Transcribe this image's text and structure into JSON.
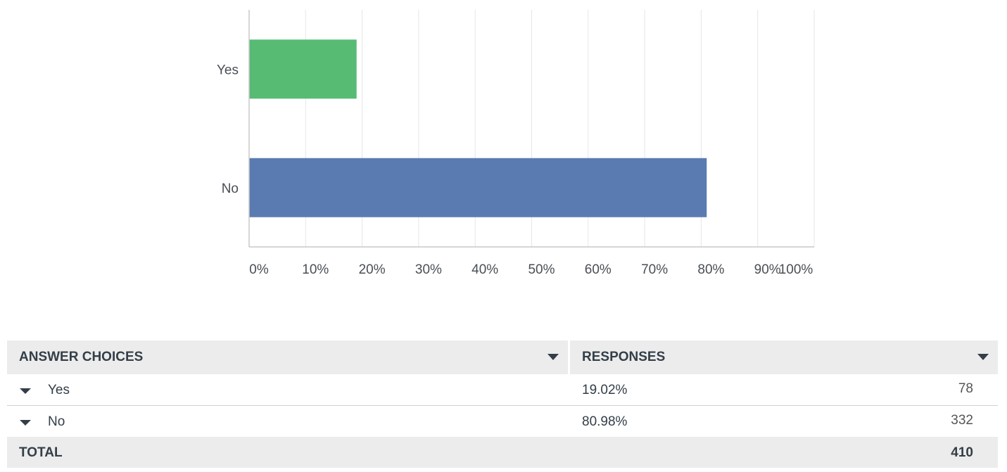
{
  "chart_data": {
    "type": "bar",
    "orientation": "horizontal",
    "categories": [
      "Yes",
      "No"
    ],
    "values": [
      19.02,
      80.98
    ],
    "colors": [
      "#57bb74",
      "#5a7bb2"
    ],
    "xlim": [
      0,
      100
    ],
    "x_ticks": [
      "0%",
      "10%",
      "20%",
      "30%",
      "40%",
      "50%",
      "60%",
      "70%",
      "80%",
      "90%",
      "100%"
    ],
    "grid": true
  },
  "table": {
    "headers": {
      "answer_choices": "ANSWER CHOICES",
      "responses": "RESPONSES"
    },
    "rows": [
      {
        "choice": "Yes",
        "percent": "19.02%",
        "count": "78"
      },
      {
        "choice": "No",
        "percent": "80.98%",
        "count": "332"
      }
    ],
    "total_label": "TOTAL",
    "total_value": "410"
  }
}
